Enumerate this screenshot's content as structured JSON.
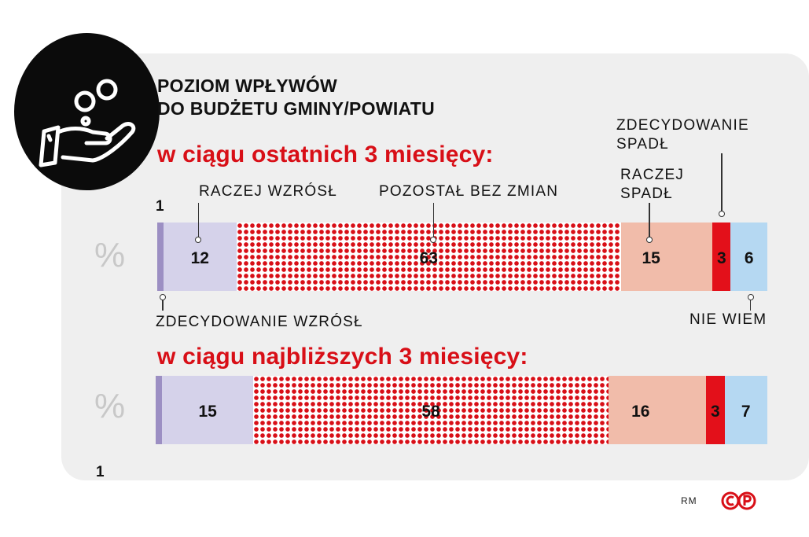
{
  "header": {
    "title_line1": "POZIOM WPŁYWÓW",
    "title_line2": "DO BUDŻETU GMINY/POWIATU",
    "icon": "hand-coins-icon"
  },
  "labels": {
    "strongly_increased": "ZDECYDOWANIE WZRÓSŁ",
    "rather_increased": "RACZEJ WZRÓSŁ",
    "unchanged": "POZOSTAŁ BEZ ZMIAN",
    "rather_decreased_l1": "RACZEJ",
    "rather_decreased_l2": "SPADŁ",
    "strongly_decreased_l1": "ZDECYDOWANIE",
    "strongly_decreased_l2": "SPADŁ",
    "dont_know": "NIE WIEM",
    "percent_sign": "%"
  },
  "credit": {
    "author": "RM",
    "logo_text": "©P"
  },
  "colors": {
    "strongly_increased": "#9c8fc3",
    "rather_increased": "#d5d2ea",
    "unchanged_dots": "#d80f17",
    "rather_decreased": "#f1bcaa",
    "strongly_decreased": "#e3101a",
    "dont_know": "#b5d8f2",
    "accent": "#d80f17"
  },
  "chart_data": {
    "type": "bar",
    "stacked": true,
    "orientation": "horizontal",
    "title": "POZIOM WPŁYWÓW DO BUDŻETU GMINY/POWIATU",
    "unit": "%",
    "categories": [
      "ZDECYDOWANIE WZRÓSŁ",
      "RACZEJ WZRÓSŁ",
      "POZOSTAŁ BEZ ZMIAN",
      "RACZEJ SPADŁ",
      "ZDECYDOWANIE SPADŁ",
      "NIE WIEM"
    ],
    "series": [
      {
        "name": "w ciągu ostatnich 3 miesięcy:",
        "values": [
          1,
          12,
          63,
          15,
          3,
          6
        ],
        "labels": [
          "1",
          "12",
          "63",
          "15",
          "3",
          "6"
        ]
      },
      {
        "name": "w ciągu najbliższych 3 miesięcy:",
        "values": [
          1,
          15,
          58,
          16,
          3,
          7
        ],
        "labels": [
          "1",
          "15",
          "58",
          "16",
          "3",
          "7"
        ]
      }
    ]
  }
}
